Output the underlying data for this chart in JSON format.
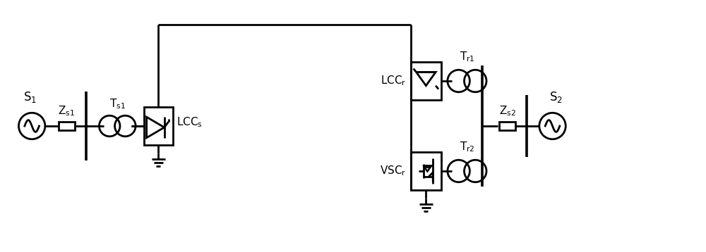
{
  "bg_color": "#ffffff",
  "line_color": "#000000",
  "line_width": 2.0,
  "fig_width": 10.0,
  "fig_height": 3.58
}
